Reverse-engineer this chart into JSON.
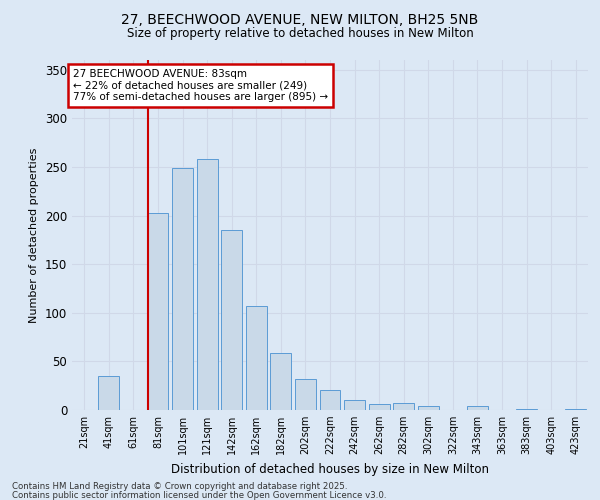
{
  "title1": "27, BEECHWOOD AVENUE, NEW MILTON, BH25 5NB",
  "title2": "Size of property relative to detached houses in New Milton",
  "xlabel": "Distribution of detached houses by size in New Milton",
  "ylabel": "Number of detached properties",
  "categories": [
    "21sqm",
    "41sqm",
    "61sqm",
    "81sqm",
    "101sqm",
    "121sqm",
    "142sqm",
    "162sqm",
    "182sqm",
    "202sqm",
    "222sqm",
    "242sqm",
    "262sqm",
    "282sqm",
    "302sqm",
    "322sqm",
    "343sqm",
    "363sqm",
    "383sqm",
    "403sqm",
    "423sqm"
  ],
  "values": [
    0,
    35,
    0,
    203,
    249,
    258,
    185,
    107,
    59,
    32,
    21,
    10,
    6,
    7,
    4,
    0,
    4,
    0,
    1,
    0,
    1
  ],
  "bar_color": "#c9d9e8",
  "bar_edge_color": "#5b9bd5",
  "grid_color": "#d0d8e8",
  "background_color": "#dce8f5",
  "red_line_index": 3,
  "annotation_text": "27 BEECHWOOD AVENUE: 83sqm\n← 22% of detached houses are smaller (249)\n77% of semi-detached houses are larger (895) →",
  "annotation_box_color": "#ffffff",
  "annotation_box_edge": "#cc0000",
  "footer1": "Contains HM Land Registry data © Crown copyright and database right 2025.",
  "footer2": "Contains public sector information licensed under the Open Government Licence v3.0.",
  "ylim": [
    0,
    360
  ],
  "yticks": [
    0,
    50,
    100,
    150,
    200,
    250,
    300,
    350
  ]
}
